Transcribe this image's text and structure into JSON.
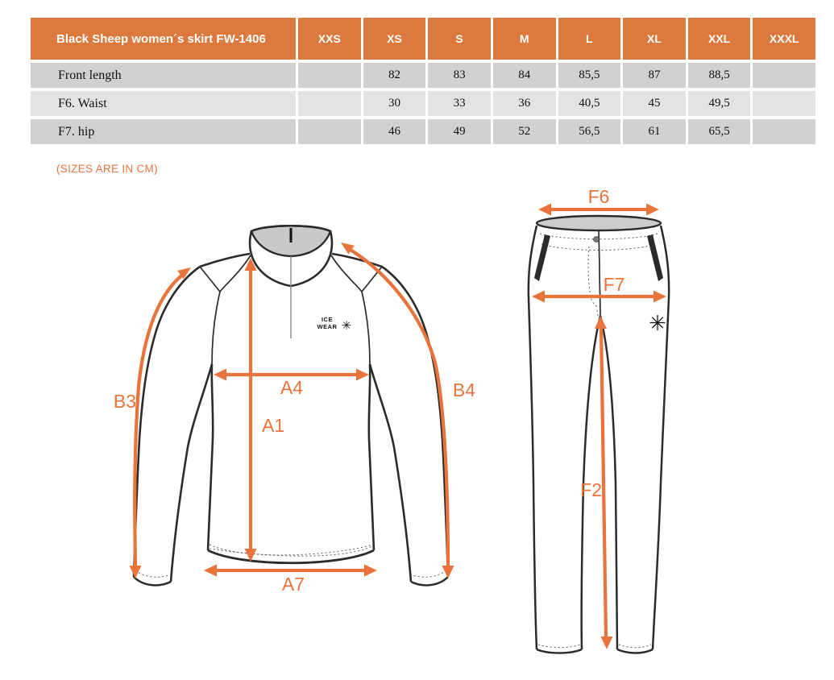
{
  "colors": {
    "accent": "#E8743C",
    "table_header_bg": "#DC793C",
    "table_row_dark": "#D1D1D0",
    "table_row_light": "#E3E3E2"
  },
  "table": {
    "title": "Black Sheep women´s skirt FW-1406",
    "columns": [
      "XXS",
      "XS",
      "S",
      "M",
      "L",
      "XL",
      "XXL",
      "XXXL"
    ],
    "rows": [
      {
        "label": "Front length",
        "values": [
          "",
          "82",
          "83",
          "84",
          "85,5",
          "87",
          "88,5",
          ""
        ]
      },
      {
        "label": "F6. Waist",
        "values": [
          "",
          "30",
          "33",
          "36",
          "40,5",
          "45",
          "49,5",
          ""
        ]
      },
      {
        "label": "F7. hip",
        "values": [
          "",
          "46",
          "49",
          "52",
          "56,5",
          "61",
          "65,5",
          ""
        ]
      }
    ]
  },
  "note": "(SIZES ARE IN CM)",
  "shirt": {
    "labels": {
      "b3": "B3",
      "b4": "B4",
      "a4": "A4",
      "a1": "A1",
      "a7": "A7"
    },
    "logo_line1": "ICE",
    "logo_line2": "WEAR",
    "snowflake_glyph": "✳"
  },
  "pants": {
    "labels": {
      "f6": "F6",
      "f7": "F7",
      "f2": "F2"
    },
    "snowflake_glyph": "✳"
  }
}
